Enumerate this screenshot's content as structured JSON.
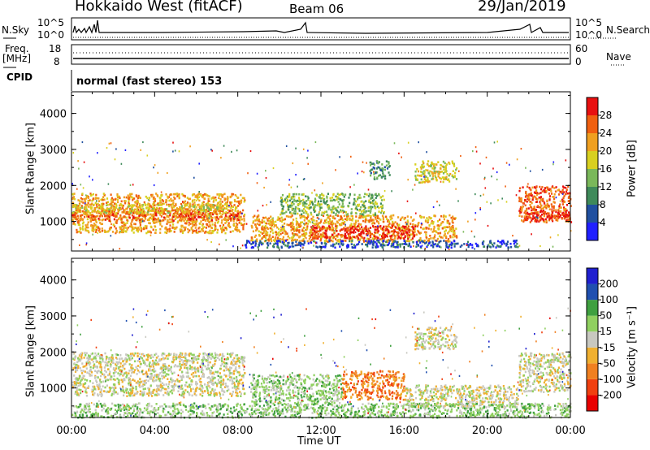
{
  "header": {
    "station": "Hokkaido West (fitACF)",
    "beam": "Beam 06",
    "date": "29/Jan/2019"
  },
  "left_labels": {
    "nsky": "N.Sky",
    "freq": "Freq.",
    "mhz": "[MHz]",
    "cpid": "CPID"
  },
  "right_labels": {
    "nsearch": "N.Search",
    "nave": "Nave"
  },
  "mini_axes": {
    "noise_left_top": "10^5",
    "noise_left_bottom": "10^0",
    "noise_right_top": "10^5",
    "noise_right_bottom": "10^0",
    "freq_top": "18",
    "freq_bottom": "8",
    "nave_top": "60",
    "nave_bottom": "0"
  },
  "cpid_text": "normal (fast stereo) 153",
  "colors": {
    "panel_border": "#000000",
    "background": "#ffffff"
  },
  "chart_data": [
    {
      "type": "heatmap",
      "name": "Power",
      "ylabel": "Slant Range [km]",
      "yticks": [
        1000,
        2000,
        3000,
        4000
      ],
      "ylim": [
        180,
        4600
      ],
      "colorbar_label": "Power [dB]",
      "colorbar_ticks": [
        "4",
        "8",
        "12",
        "16",
        "20",
        "24",
        "28"
      ],
      "colorbar_colors": [
        "#2020ff",
        "#2050a0",
        "#3f8a5a",
        "#7ab85a",
        "#d8d020",
        "#f0a020",
        "#f06010",
        "#e81010"
      ],
      "x_ticks": [
        "00:00",
        "04:00",
        "08:00",
        "12:00",
        "16:00",
        "20:00",
        "00:00"
      ],
      "xlim_hours": [
        0,
        24
      ],
      "blobs": [
        {
          "t0": 0.0,
          "t1": 8.3,
          "r0": 700,
          "r1": 1800,
          "c": 5
        },
        {
          "t0": 0.0,
          "t1": 8.0,
          "r0": 1050,
          "r1": 1350,
          "c": 6
        },
        {
          "t0": 0.0,
          "t1": 7.5,
          "r0": 1250,
          "r1": 1500,
          "c": 4
        },
        {
          "t0": 8.6,
          "t1": 18.5,
          "r0": 450,
          "r1": 1200,
          "c": 5
        },
        {
          "t0": 11.5,
          "t1": 16.5,
          "r0": 550,
          "r1": 900,
          "c": 7
        },
        {
          "t0": 10.0,
          "t1": 15.0,
          "r0": 1200,
          "r1": 1800,
          "c": 3
        },
        {
          "t0": 16.5,
          "t1": 18.5,
          "r0": 2100,
          "r1": 2700,
          "c": 4
        },
        {
          "t0": 14.3,
          "t1": 15.3,
          "r0": 2200,
          "r1": 2700,
          "c": 2
        },
        {
          "t0": 21.5,
          "t1": 24.0,
          "r0": 1000,
          "r1": 2000,
          "c": 6
        },
        {
          "t0": 21.8,
          "t1": 24.0,
          "r0": 1050,
          "r1": 1300,
          "c": 7
        },
        {
          "t0": 8.3,
          "t1": 21.5,
          "r0": 300,
          "r1": 500,
          "c": 1
        }
      ]
    },
    {
      "type": "heatmap",
      "name": "Velocity",
      "ylabel": "Slant Range [km]",
      "yticks": [
        1000,
        2000,
        3000,
        4000
      ],
      "ylim": [
        180,
        4600
      ],
      "colorbar_label": "Velocity [m s⁻¹]",
      "colorbar_ticks": [
        "-200",
        "-100",
        "-50",
        "-15",
        "15",
        "50",
        "100",
        "200"
      ],
      "colorbar_colors": [
        "#e80000",
        "#f04010",
        "#f08020",
        "#f0b030",
        "#c8c8c0",
        "#90d060",
        "#3fa040",
        "#2050b0",
        "#2020d0"
      ],
      "x_ticks": [
        "00:00",
        "04:00",
        "08:00",
        "12:00",
        "16:00",
        "20:00",
        "00:00"
      ],
      "xlim_hours": [
        0,
        24
      ],
      "xlabel": "Time UT",
      "blobs": [
        {
          "t0": 0.0,
          "t1": 8.3,
          "r0": 800,
          "r1": 2000,
          "c": 4
        },
        {
          "t0": 8.6,
          "t1": 13.0,
          "r0": 600,
          "r1": 1400,
          "c": 5
        },
        {
          "t0": 13.0,
          "t1": 16.0,
          "r0": 700,
          "r1": 1500,
          "c": 2
        },
        {
          "t0": 16.0,
          "t1": 21.5,
          "r0": 500,
          "r1": 1100,
          "c": 4
        },
        {
          "t0": 16.5,
          "t1": 18.5,
          "r0": 2100,
          "r1": 2700,
          "c": 4
        },
        {
          "t0": 21.5,
          "t1": 24.0,
          "r0": 900,
          "r1": 2000,
          "c": 4
        },
        {
          "t0": 0.0,
          "t1": 24.0,
          "r0": 200,
          "r1": 600,
          "c": 5
        }
      ]
    }
  ]
}
